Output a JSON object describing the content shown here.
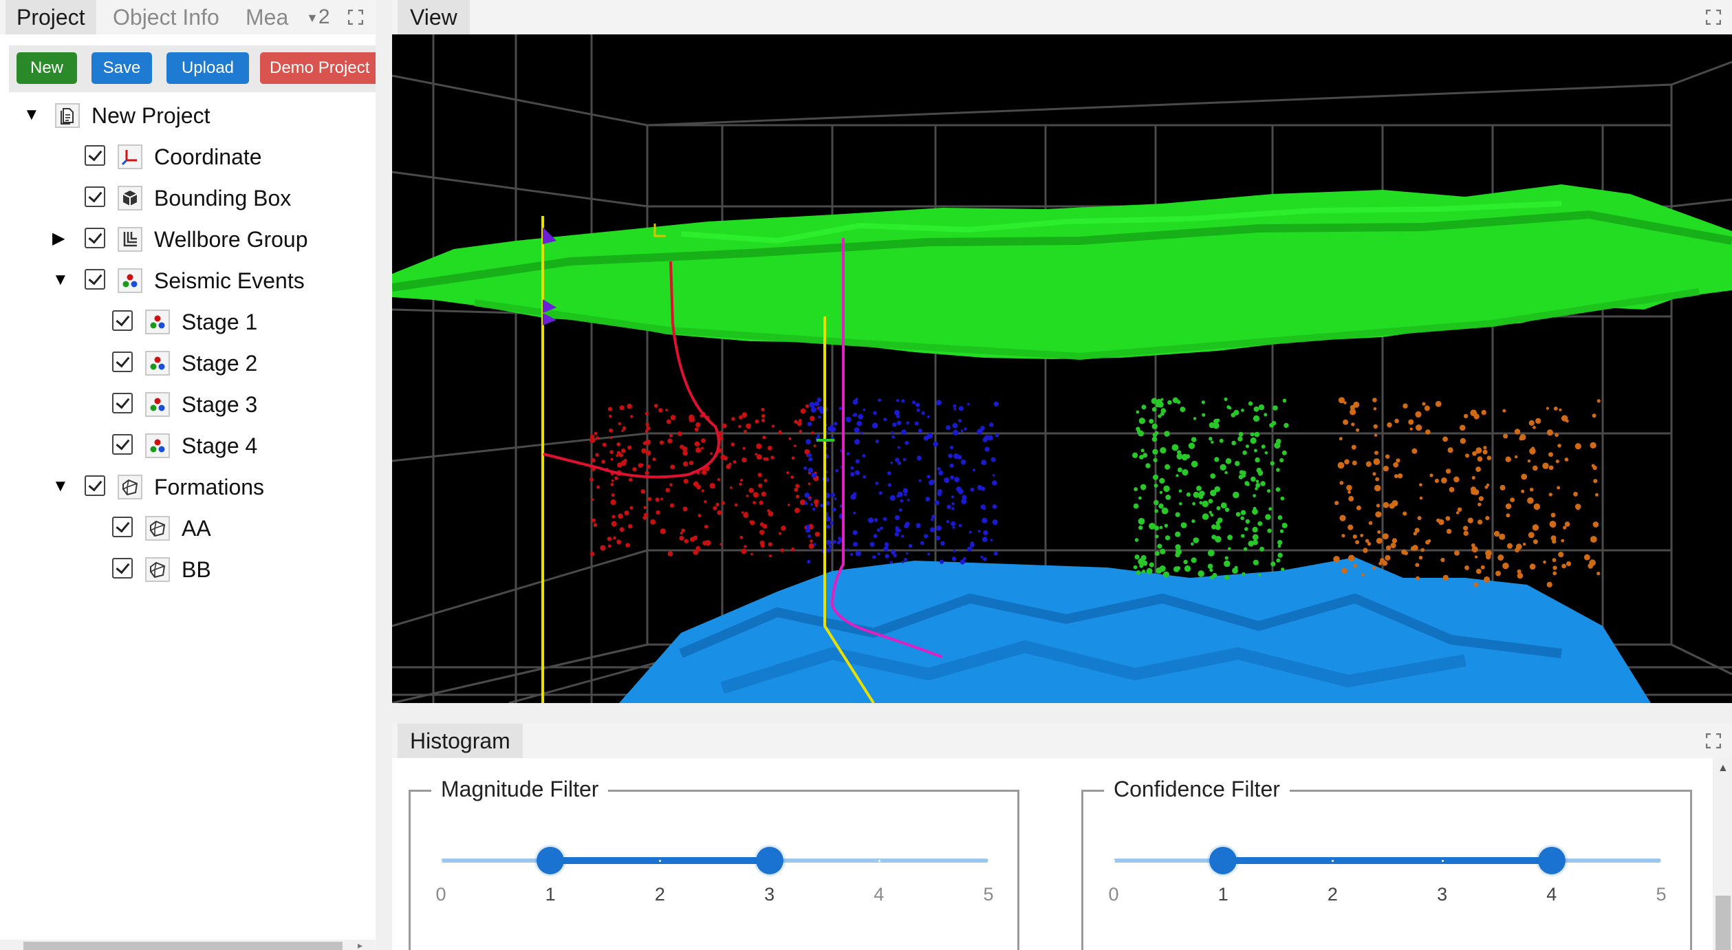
{
  "left_tabs": {
    "project": "Project",
    "object_info": "Object Info",
    "mea": "Mea",
    "overflow_count": "2"
  },
  "toolbar": {
    "new_label": "New",
    "save_label": "Save",
    "upload_label": "Upload",
    "demo_label": "Demo Project",
    "colors": {
      "new": "#2a8a2a",
      "save": "#1f7ad1",
      "upload": "#1f7ad1",
      "demo": "#d9534f"
    }
  },
  "tree": {
    "root": {
      "label": "New Project",
      "expanded": true,
      "icon": "project-file-icon"
    },
    "items": [
      {
        "label": "Coordinate",
        "checked": true,
        "icon": "axes-icon"
      },
      {
        "label": "Bounding Box",
        "checked": true,
        "icon": "cube-icon"
      },
      {
        "label": "Wellbore Group",
        "checked": true,
        "expanded": false,
        "icon": "wellbore-icon"
      },
      {
        "label": "Seismic Events",
        "checked": true,
        "expanded": true,
        "icon": "seismic-dots-icon",
        "children": [
          {
            "label": "Stage 1",
            "checked": true
          },
          {
            "label": "Stage 2",
            "checked": true
          },
          {
            "label": "Stage 3",
            "checked": true
          },
          {
            "label": "Stage 4",
            "checked": true
          }
        ]
      },
      {
        "label": "Formations",
        "checked": true,
        "expanded": true,
        "icon": "formation-icon",
        "children": [
          {
            "label": "AA",
            "checked": true
          },
          {
            "label": "BB",
            "checked": true
          }
        ]
      }
    ]
  },
  "view": {
    "tab_label": "View",
    "scene_colors": {
      "background": "#000000",
      "grid": "#4a4a4a",
      "formation_top": "#22dd22",
      "formation_bottom": "#1a8fe6",
      "stage1": "#c81010",
      "stage2": "#1a1ad0",
      "stage3": "#28c828",
      "stage4": "#d06a14",
      "well_yellow": "#e8e000",
      "well_red": "#e01030",
      "well_magenta": "#e020c0"
    }
  },
  "histogram": {
    "tab_label": "Histogram",
    "filters": [
      {
        "title": "Magnitude Filter",
        "min": 0,
        "max": 5,
        "low": 1,
        "high": 3,
        "ticks": [
          "0",
          "1",
          "2",
          "3",
          "4",
          "5"
        ]
      },
      {
        "title": "Confidence Filter",
        "min": 0,
        "max": 5,
        "low": 1,
        "high": 4,
        "ticks": [
          "0",
          "1",
          "2",
          "3",
          "4",
          "5"
        ]
      }
    ]
  }
}
